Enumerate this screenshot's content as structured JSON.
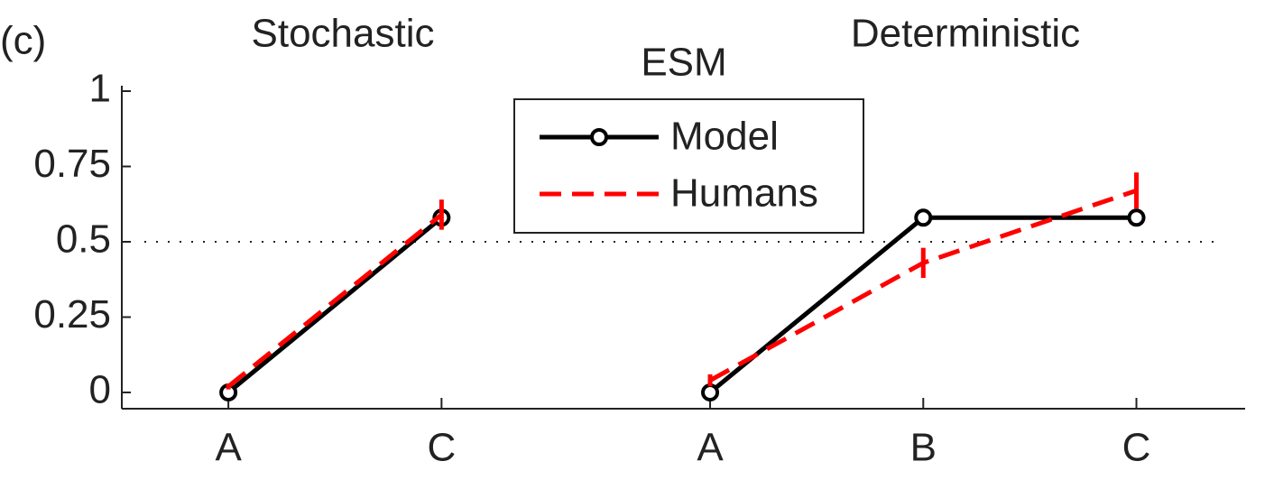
{
  "chart_data": {
    "type": "line",
    "panel_label": "(c)",
    "title": "ESM",
    "group_titles": [
      "Stochastic",
      "Deterministic"
    ],
    "xlim": [
      0.5,
      5.77
    ],
    "ylim": [
      -0.054,
      1.018
    ],
    "xticks": [
      {
        "value": 1,
        "label": "A"
      },
      {
        "value": 2,
        "label": "C"
      },
      {
        "value": 3.26,
        "label": "A"
      },
      {
        "value": 4.26,
        "label": "B"
      },
      {
        "value": 5.26,
        "label": "C"
      }
    ],
    "yticks": [
      0,
      0.25,
      0.5,
      0.75,
      1
    ],
    "reference_line": 0.5,
    "series": [
      {
        "name": "Model",
        "color": "#000000",
        "segments": [
          {
            "x": [
              1,
              2
            ],
            "values": [
              0,
              0.58
            ]
          },
          {
            "x": [
              3.26,
              4.26,
              5.26
            ],
            "values": [
              0,
              0.58,
              0.58
            ]
          }
        ]
      },
      {
        "name": "Humans",
        "color": "#ff0000",
        "segments": [
          {
            "x": [
              1,
              2
            ],
            "values": [
              0.02,
              0.59
            ],
            "errors": [
              0.01,
              0.05
            ]
          },
          {
            "x": [
              3.26,
              4.26,
              5.26
            ],
            "values": [
              0.04,
              0.43,
              0.67
            ],
            "errors": [
              0.02,
              0.05,
              0.06
            ]
          }
        ]
      }
    ],
    "legend": "upper center"
  }
}
